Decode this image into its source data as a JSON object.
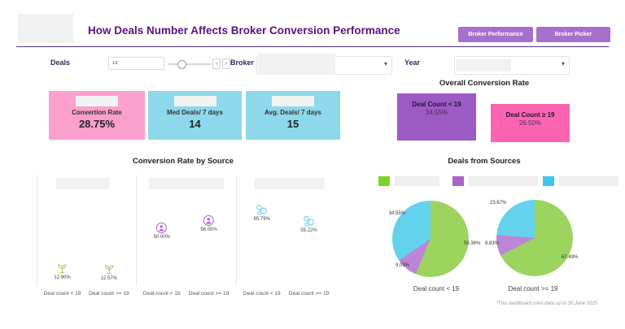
{
  "header": {
    "title": "How Deals Number Affects Broker Conversion Performance",
    "buttons": [
      {
        "label": "Broker Performance"
      },
      {
        "label": "Broker Picker"
      }
    ],
    "button_color": "#A571CA"
  },
  "icons": {
    "caret_down": "▾",
    "chevron_left": "‹",
    "chevron_right": "›"
  },
  "filters": {
    "deals": {
      "label": "Deals",
      "value": "19"
    },
    "broker": {
      "label": "Broker"
    },
    "year": {
      "label": "Year"
    }
  },
  "summary_cards": [
    {
      "label": "Convertion Rate",
      "value": "28.75%",
      "color": "#FB9FCD"
    },
    {
      "label": "Med Deals/ 7 days",
      "value": "14",
      "color": "#8ED8EB"
    },
    {
      "label": "Avg. Deals/ 7 days",
      "value": "15",
      "color": "#8ED8EB"
    }
  ],
  "overall": {
    "title": "Overall Conversion Rate",
    "bars": [
      {
        "label": "Deal Count < 19",
        "value": 34.55,
        "value_label": "34.55%",
        "color": "#9D5BC5"
      },
      {
        "label": "Deal Count ≥ 19",
        "value": 26.5,
        "value_label": "26.50%",
        "color": "#FC64B2"
      }
    ]
  },
  "chart_data": [
    {
      "type": "scatter",
      "title": "Conversion Rate by Source",
      "categories": [
        "Deal count < 19",
        "Deal count >= 19"
      ],
      "series": [
        {
          "icon": "plant-icon",
          "color": "#9CCF4F",
          "values": [
            12.9,
            12.57
          ],
          "labels": [
            "12.90%",
            "12.57%"
          ]
        },
        {
          "icon": "person-icon",
          "color": "#AB63CC",
          "values": [
            50.0,
            56.0
          ],
          "labels": [
            "50.00%",
            "56.00%"
          ]
        },
        {
          "icon": "bubbles-icon",
          "color": "#5FD0EE",
          "values": [
            65.79,
            55.22
          ],
          "labels": [
            "65.79%",
            "55.22%"
          ]
        }
      ],
      "ylim": [
        0,
        100
      ],
      "legend_position": "none"
    },
    {
      "type": "pie",
      "title": "Deals from Sources",
      "legend_colors": [
        "#7ED321",
        "#AB63CC",
        "#3EC6E8"
      ],
      "legend_position": "top",
      "pies": [
        {
          "label": "Deal count < 19",
          "slices": [
            {
              "color": "#9CD45F",
              "value": 56.36,
              "label": "56.36%"
            },
            {
              "color": "#BC85D6",
              "value": 9.09,
              "label": "9.09%"
            },
            {
              "color": "#63D2ED",
              "value": 34.55,
              "label": "34.55%"
            }
          ]
        },
        {
          "label": "Deal count >= 19",
          "slices": [
            {
              "color": "#9CD45F",
              "value": 67.49,
              "label": "67.49%"
            },
            {
              "color": "#BC85D6",
              "value": 8.83,
              "label": "8.83%"
            },
            {
              "color": "#63D2ED",
              "value": 23.67,
              "label": "23.67%"
            }
          ]
        }
      ]
    }
  ],
  "footnote": "*This dashboard uses data up to 30 June 2025"
}
